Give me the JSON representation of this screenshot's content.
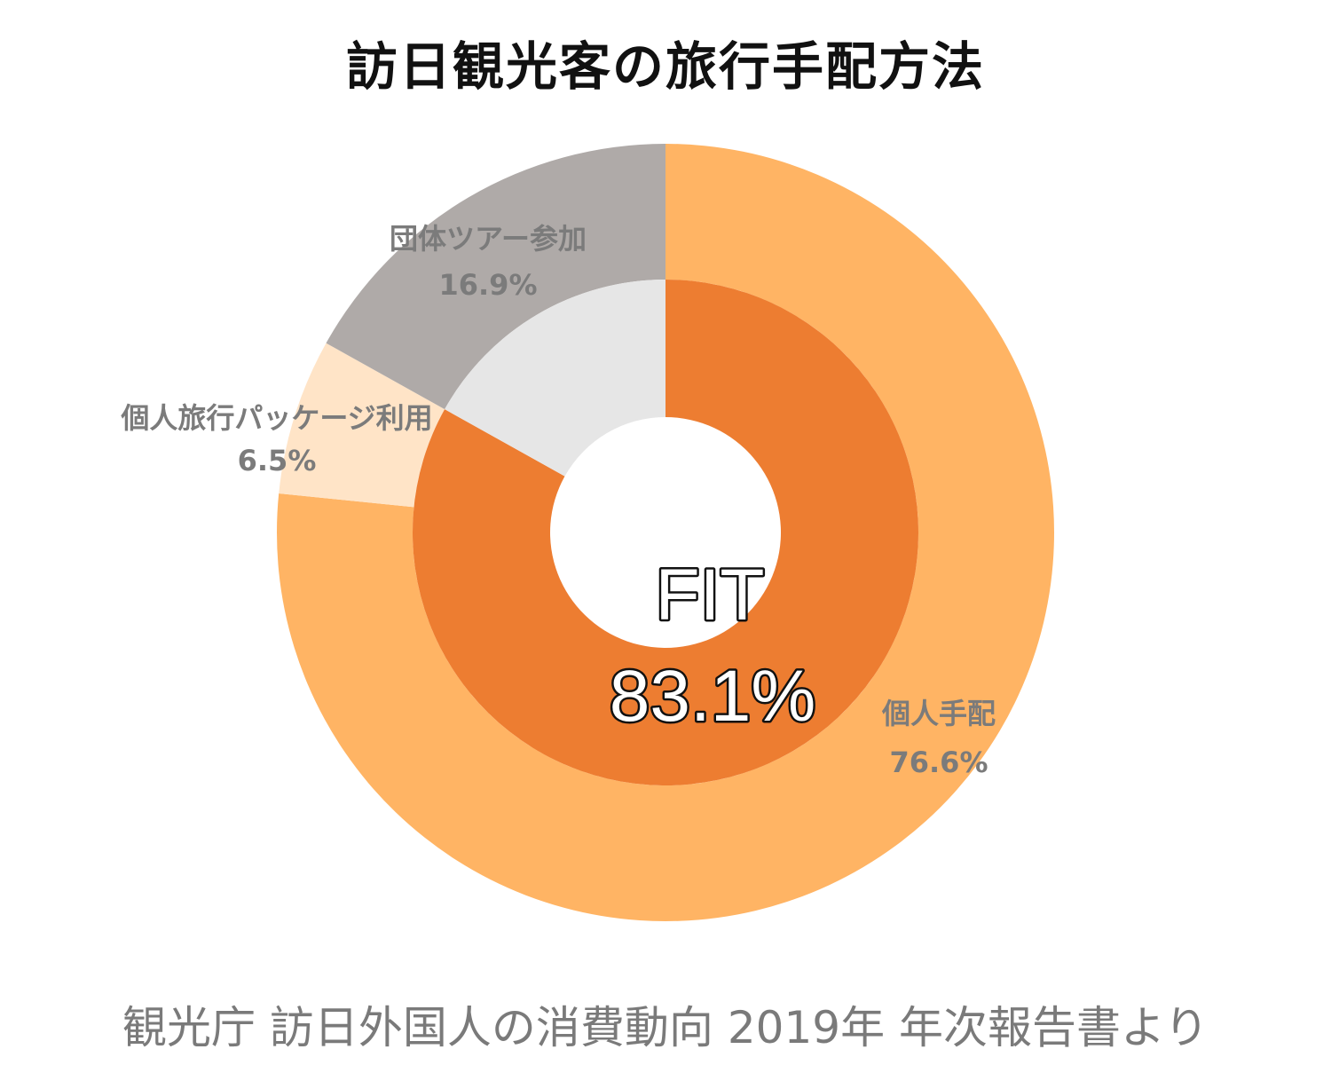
{
  "chart_data": {
    "type": "pie",
    "subtype": "nested-donut",
    "title": "訪日観光客の旅行手配方法",
    "source": "観光庁 訪日外国人の消費動向 2019年 年次報告書より",
    "start_angle": "12 o'clock",
    "direction": "clockwise",
    "inner_ring": {
      "slices": [
        {
          "label": "FIT",
          "value": 83.1,
          "value_label": "83.1%",
          "color": "#ed7d31"
        },
        {
          "label": "",
          "value": 16.9,
          "color": "#e6e6e6"
        }
      ],
      "center_text": {
        "line1": "FIT",
        "line2": "83.1%"
      }
    },
    "outer_ring": {
      "slices": [
        {
          "label": "個人手配",
          "value": 76.6,
          "value_label": "76.6%",
          "color": "#ffb464",
          "label_color": "#7b7b7b"
        },
        {
          "label": "個人旅行パッケージ利用",
          "value": 6.5,
          "value_label": "6.5%",
          "color": "#ffe4c7",
          "label_color": "#7b7b7b"
        },
        {
          "label": "団体ツアー参加",
          "value": 16.9,
          "value_label": "16.9%",
          "color": "#afaaa8",
          "label_color": "#7b7b7b"
        }
      ]
    }
  }
}
